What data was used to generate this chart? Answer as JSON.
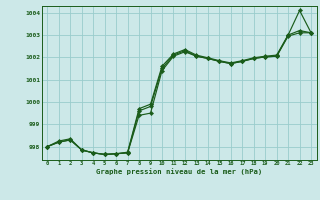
{
  "title": "Graphe pression niveau de la mer (hPa)",
  "bg_color": "#cce8e8",
  "grid_color": "#99cccc",
  "line_color": "#1a5c1a",
  "xlim": [
    -0.5,
    23.5
  ],
  "ylim": [
    997.4,
    1004.3
  ],
  "yticks": [
    998,
    999,
    1000,
    1001,
    1002,
    1003,
    1004
  ],
  "xticks": [
    0,
    1,
    2,
    3,
    4,
    5,
    6,
    7,
    8,
    9,
    10,
    11,
    12,
    13,
    14,
    15,
    16,
    17,
    18,
    19,
    20,
    21,
    22,
    23
  ],
  "series1": [
    998.0,
    998.2,
    998.3,
    997.85,
    997.72,
    997.65,
    997.68,
    997.72,
    999.4,
    999.5,
    1001.4,
    1002.05,
    1002.25,
    1002.05,
    1001.95,
    1001.82,
    1001.72,
    1001.82,
    1001.95,
    1002.02,
    1002.05,
    1002.95,
    1003.1,
    1003.1
  ],
  "series2": [
    998.0,
    998.2,
    998.3,
    997.85,
    997.72,
    997.65,
    997.68,
    997.72,
    999.6,
    999.8,
    1001.5,
    1002.1,
    1002.3,
    1002.05,
    1001.95,
    1001.82,
    1001.72,
    1001.82,
    1001.95,
    1002.02,
    1002.05,
    1003.0,
    1004.1,
    1003.1
  ],
  "series3": [
    998.0,
    998.25,
    998.35,
    997.85,
    997.72,
    997.65,
    997.68,
    997.75,
    999.7,
    999.9,
    1001.6,
    1002.15,
    1002.35,
    1002.1,
    1001.98,
    1001.85,
    1001.75,
    1001.85,
    1001.98,
    1002.05,
    1002.1,
    1003.0,
    1003.2,
    1003.1
  ]
}
